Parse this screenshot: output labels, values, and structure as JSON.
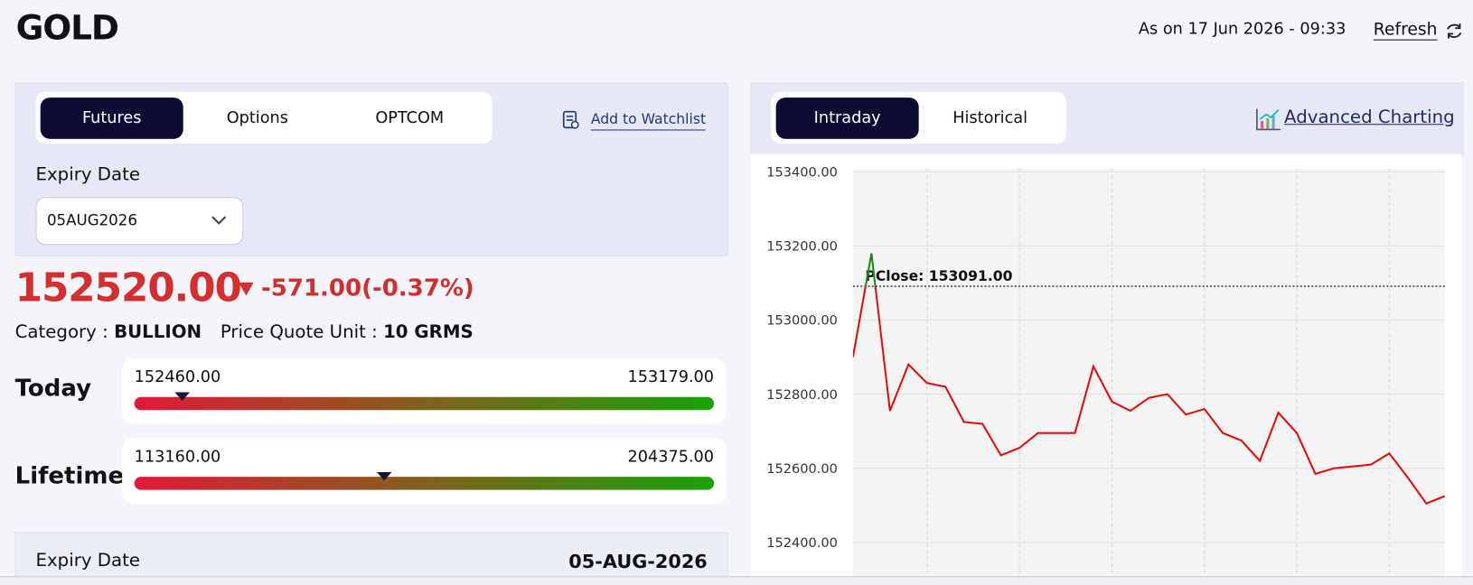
{
  "header": {
    "title": "GOLD",
    "as_on": "As on 17 Jun 2026 - 09:33",
    "refresh": "Refresh"
  },
  "left_panel": {
    "tabs": [
      "Futures",
      "Options",
      "OPTCOM"
    ],
    "active_tab": 0,
    "watchlist": "Add to Watchlist",
    "expiry_label": "Expiry Date",
    "expiry_value": "05AUG2026"
  },
  "quote": {
    "price": {
      "value": 152520,
      "label": "152520.00"
    },
    "change": "-571.00(-0.37%)",
    "category_label": "Category :",
    "category": "BULLION",
    "unit_label": "Price Quote Unit :",
    "unit": "10 GRMS"
  },
  "ranges": [
    {
      "label": "Today",
      "low": {
        "value": 152460,
        "label": "152460.00"
      },
      "high": {
        "value": 153179,
        "label": "153179.00"
      }
    },
    {
      "label": "Lifetime",
      "low": {
        "value": 113160,
        "label": "113160.00"
      },
      "high": {
        "value": 204375,
        "label": "204375.00"
      }
    }
  ],
  "details": {
    "rows": [
      [
        "Expiry Date",
        "05-AUG-2026"
      ]
    ]
  },
  "chart_panel": {
    "tabs": [
      "Intraday",
      "Historical"
    ],
    "active_tab": 0,
    "advanced": "Advanced Charting"
  },
  "chart_data": {
    "type": "line",
    "values": [
      152900,
      153180,
      152755,
      152880,
      152830,
      152820,
      152725,
      152720,
      152635,
      152655,
      152695,
      152695,
      152695,
      152875,
      152780,
      152755,
      152790,
      152800,
      152745,
      152760,
      152695,
      152675,
      152620,
      152750,
      152695,
      152585,
      152600,
      152605,
      152610,
      152640,
      152575,
      152505,
      152525
    ],
    "color": "#e01010",
    "above_color": "#1d8a1d",
    "ylim": [
      152300,
      153400
    ],
    "yticks": [
      {
        "value": 152400,
        "label": "152400.00"
      },
      {
        "value": 152600,
        "label": "152600.00"
      },
      {
        "value": 152800,
        "label": "152800.00"
      },
      {
        "value": 153000,
        "label": "153000.00"
      },
      {
        "value": 153200,
        "label": "153200.00"
      },
      {
        "value": 153400,
        "label": "153400.00"
      }
    ],
    "reference": {
      "value": 153091,
      "label": "PClose: 153091.00"
    },
    "grid": true
  }
}
